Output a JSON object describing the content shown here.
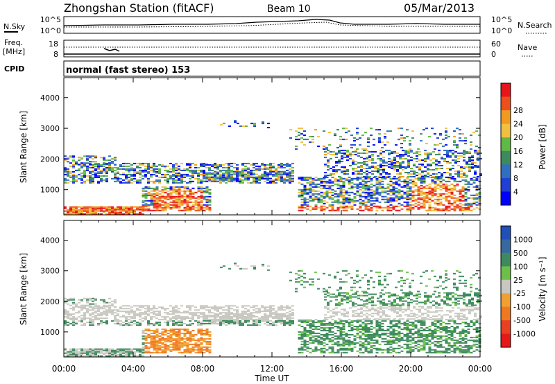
{
  "header": {
    "station": "Zhongshan Station (fitACF)",
    "beam": "Beam 10",
    "date": "05/Mar/2013"
  },
  "strip_noise": {
    "left_label": "N.Sky",
    "right_label": "N.Search",
    "left_ticks": [
      "10^5",
      "10^0"
    ],
    "right_ticks": [
      "10^5",
      "10^0"
    ]
  },
  "strip_freq": {
    "left_label_1": "Freq.",
    "left_label_2": "[MHz]",
    "right_label": "Nave",
    "left_ticks": [
      "18",
      "8"
    ],
    "right_ticks": [
      "60",
      "0"
    ]
  },
  "cpid": {
    "label": "CPID",
    "mode": "normal (fast stereo) 153"
  },
  "chart_data": [
    {
      "type": "heatmap",
      "quantity": "power",
      "xlabel": "",
      "ylabel": "Slant Range [km]",
      "x_ticks": [
        "00:00",
        "04:00",
        "08:00",
        "12:00",
        "16:00",
        "20:00",
        "00:00"
      ],
      "y_ticks": [
        1000,
        2000,
        3000,
        4000
      ],
      "ylim": [
        180,
        4650
      ],
      "colorbar": {
        "label": "Power [dB]",
        "ticks": [
          "4",
          "8",
          "12",
          "16",
          "20",
          "24",
          "28"
        ],
        "colors": [
          "#0000ff",
          "#1f3fd6",
          "#2f6fbf",
          "#3d8a5e",
          "#5fb944",
          "#f0c040",
          "#f09a20",
          "#ec4f1c",
          "#e8141a"
        ]
      }
    },
    {
      "type": "heatmap",
      "quantity": "velocity",
      "xlabel": "Time UT",
      "ylabel": "Slant Range [km]",
      "x_ticks": [
        "00:00",
        "04:00",
        "08:00",
        "12:00",
        "16:00",
        "20:00",
        "00:00"
      ],
      "y_ticks": [
        1000,
        2000,
        3000,
        4000
      ],
      "ylim": [
        180,
        4650
      ],
      "colorbar": {
        "label": "Velocity [m s⁻¹]",
        "ticks": [
          "1000",
          "500",
          "100",
          "25",
          "-25",
          "-100",
          "-500",
          "-1000"
        ],
        "colors": [
          "#2050b8",
          "#3868a0",
          "#3d8a5e",
          "#6cc04a",
          "#c8c8c0",
          "#f0a030",
          "#f07820",
          "#e84020",
          "#e81818"
        ]
      }
    }
  ]
}
